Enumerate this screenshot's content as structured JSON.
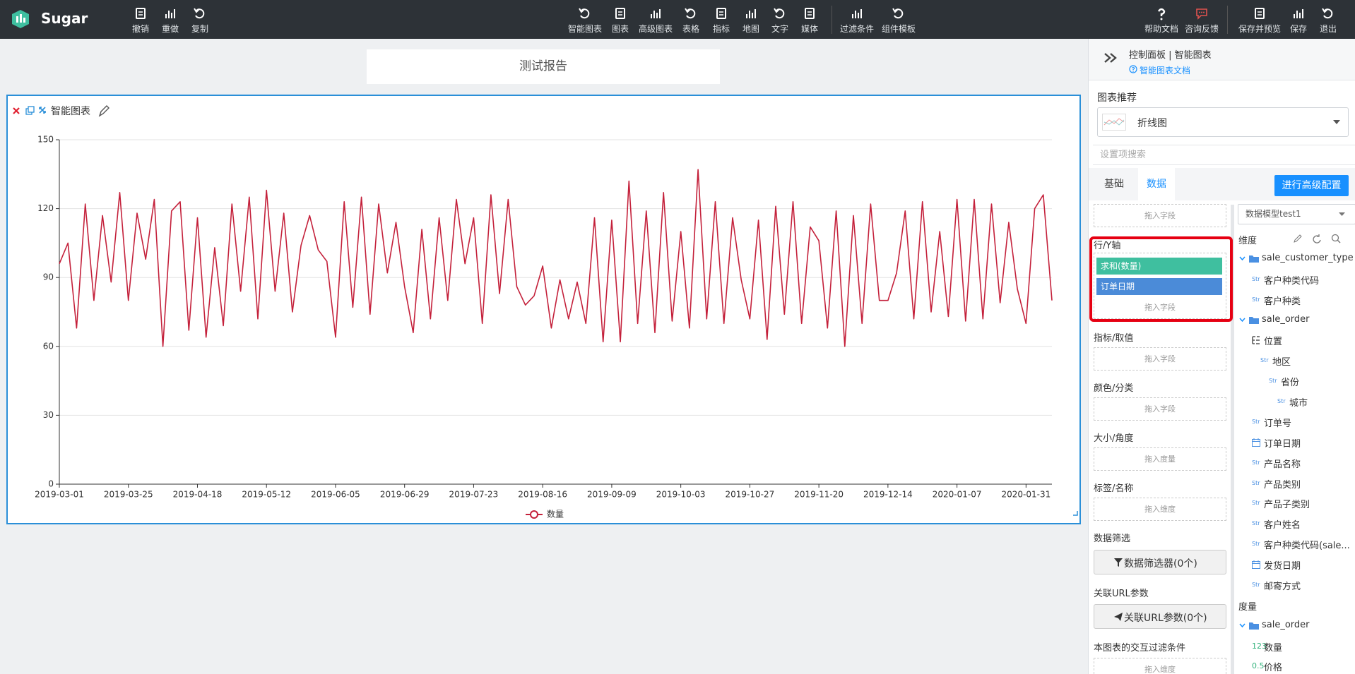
{
  "toolbar": {
    "brand": "Sugar",
    "left": [
      "撤销",
      "重做",
      "复制"
    ],
    "center": [
      "智能图表",
      "图表",
      "高级图表",
      "表格",
      "指标",
      "地图",
      "文字",
      "媒体",
      "过滤条件",
      "组件模板"
    ],
    "right": [
      "帮助文档",
      "咨询反馈",
      "保存并预览",
      "保存",
      "退出"
    ]
  },
  "report_title": "测试报告",
  "widget_title": "智能图表",
  "chart_data": {
    "type": "line",
    "categories": [
      "2019-03-01",
      null,
      null,
      null,
      null,
      null,
      null,
      null,
      "2019-03-25",
      null,
      null,
      null,
      null,
      null,
      null,
      null,
      "2019-04-18",
      null,
      null,
      null,
      null,
      null,
      null,
      null,
      "2019-05-12",
      null,
      null,
      null,
      null,
      null,
      null,
      null,
      "2019-06-05",
      null,
      null,
      null,
      null,
      null,
      null,
      null,
      "2019-06-29",
      null,
      null,
      null,
      null,
      null,
      null,
      null,
      "2019-07-23",
      null,
      null,
      null,
      null,
      null,
      null,
      null,
      "2019-08-16",
      null,
      null,
      null,
      null,
      null,
      null,
      null,
      "2019-09-09",
      null,
      null,
      null,
      null,
      null,
      null,
      null,
      "2019-10-03",
      null,
      null,
      null,
      null,
      null,
      null,
      null,
      "2019-10-27",
      null,
      null,
      null,
      null,
      null,
      null,
      null,
      "2019-11-20",
      null,
      null,
      null,
      null,
      null,
      null,
      null,
      "2019-12-14",
      null,
      null,
      null,
      null,
      null,
      null,
      null,
      "2020-01-07",
      null,
      null,
      null,
      null,
      null,
      null,
      null,
      "2020-01-31",
      null,
      null,
      null
    ],
    "series": [
      {
        "name": "数量",
        "color": "#c4213b",
        "values": [
          96,
          105,
          68,
          122,
          80,
          117,
          88,
          127,
          80,
          118,
          98,
          124,
          60,
          119,
          123,
          67,
          116,
          64,
          103,
          69,
          122,
          84,
          125,
          72,
          128,
          84,
          118,
          75,
          104,
          117,
          102,
          97,
          64,
          123,
          77,
          125,
          74,
          122,
          92,
          114,
          86,
          66,
          111,
          72,
          116,
          80,
          124,
          96,
          116,
          70,
          126,
          83,
          124,
          86,
          78,
          82,
          95,
          68,
          89,
          72,
          88,
          70,
          116,
          62,
          115,
          62,
          132,
          70,
          119,
          66,
          127,
          71,
          110,
          68,
          137,
          72,
          123,
          70,
          116,
          89,
          72,
          115,
          63,
          121,
          74,
          123,
          70,
          112,
          106,
          68,
          119,
          60,
          117,
          70,
          122,
          80,
          80,
          92,
          119,
          72,
          123,
          75,
          110,
          73,
          124,
          71,
          124,
          72,
          122,
          79,
          114,
          85,
          70,
          120,
          126,
          80
        ]
      }
    ],
    "ylim": [
      0,
      150
    ],
    "yticks": [
      0,
      30,
      60,
      90,
      120,
      150
    ],
    "grid": true
  },
  "panel": {
    "title": "控制面板 | 智能图表",
    "doc_link": "智能图表文档",
    "recommend_label": "图表推荐",
    "recommend_value": "折线图",
    "search_placeholder": "设置项搜索",
    "tabs": [
      "基础",
      "数据"
    ],
    "active_tab": 1,
    "advanced_button": "进行高级配置",
    "slots": [
      {
        "drop": "拖入字段"
      },
      {
        "label": "行/Y轴",
        "highlight": true,
        "fields": [
          {
            "name": "求和(数量)",
            "color": "#3fbf9f"
          },
          {
            "name": "订单日期",
            "color": "#4b8bd8"
          }
        ],
        "drop": "拖入字段"
      },
      {
        "label": "指标/取值",
        "drop": "拖入字段"
      },
      {
        "label": "颜色/分类",
        "drop": "拖入字段"
      },
      {
        "label": "大小/角度",
        "drop": "拖入度量"
      },
      {
        "label": "标签/名称",
        "drop": "拖入维度"
      },
      {
        "label": "数据筛选",
        "button": "数据筛选器(0个)"
      },
      {
        "label": "关联URL参数",
        "button": "关联URL参数(0个)"
      },
      {
        "label": "本图表的交互过滤条件",
        "drop": "拖入维度"
      }
    ],
    "dataset": "数据模型test1",
    "dimensions": {
      "label": "维度",
      "groups": [
        {
          "name": "sale_customer_type",
          "items": [
            {
              "type": "Str",
              "name": "客户种类代码"
            },
            {
              "type": "Str",
              "name": "客户种类"
            }
          ]
        },
        {
          "name": "sale_order",
          "items": [
            {
              "icon": "hierarchy",
              "name": "位置",
              "children": [
                {
                  "type": "Str",
                  "name": "地区",
                  "children": [
                    {
                      "type": "Str",
                      "name": "省份",
                      "children": [
                        {
                          "type": "Str",
                          "name": "城市"
                        }
                      ]
                    }
                  ]
                }
              ]
            },
            {
              "type": "Str",
              "name": "订单号"
            },
            {
              "icon": "calendar",
              "name": "订单日期"
            },
            {
              "type": "Str",
              "name": "产品名称"
            },
            {
              "type": "Str",
              "name": "产品类别"
            },
            {
              "type": "Str",
              "name": "产品子类别"
            },
            {
              "type": "Str",
              "name": "客户姓名"
            },
            {
              "type": "Str",
              "name": "客户种类代码(sale..."
            },
            {
              "icon": "calendar",
              "name": "发货日期"
            },
            {
              "type": "Str",
              "name": "邮寄方式"
            }
          ]
        }
      ]
    },
    "measures": {
      "label": "度量",
      "groups": [
        {
          "name": "sale_order",
          "items": [
            {
              "type": "123",
              "name": "数量"
            },
            {
              "type": "0.5",
              "name": "价格"
            }
          ]
        }
      ]
    }
  }
}
